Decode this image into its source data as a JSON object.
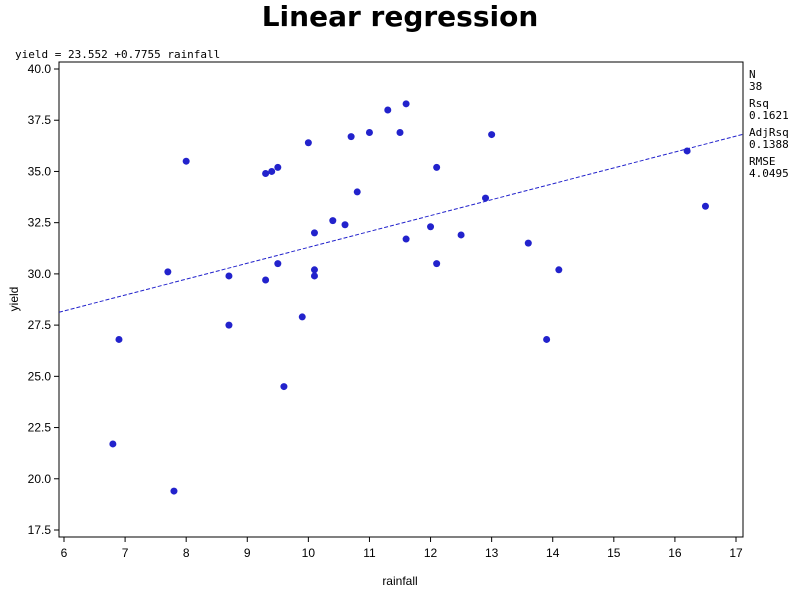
{
  "chart_data": {
    "type": "scatter",
    "title": "Linear regression",
    "equation": "yield = 23.552 +0.7755 rainfall",
    "xlabel": "rainfall",
    "ylabel": "yield",
    "xlim": [
      6,
      17
    ],
    "ylim": [
      17.5,
      40.0
    ],
    "xticks": [
      6,
      7,
      8,
      9,
      10,
      11,
      12,
      13,
      14,
      15,
      16,
      17
    ],
    "yticks": [
      "17.5",
      "20.0",
      "22.5",
      "25.0",
      "27.5",
      "30.0",
      "32.5",
      "35.0",
      "37.5",
      "40.0"
    ],
    "grid": false,
    "point_color": "#2222cc",
    "line_color": "#2222cc",
    "regression": {
      "intercept": 23.552,
      "slope": 0.7755
    },
    "points": [
      {
        "x": 6.8,
        "y": 21.7
      },
      {
        "x": 6.9,
        "y": 26.8
      },
      {
        "x": 7.7,
        "y": 30.1
      },
      {
        "x": 7.8,
        "y": 19.4
      },
      {
        "x": 8.0,
        "y": 35.5
      },
      {
        "x": 8.7,
        "y": 29.9
      },
      {
        "x": 8.7,
        "y": 27.5
      },
      {
        "x": 9.3,
        "y": 34.9
      },
      {
        "x": 9.3,
        "y": 29.7
      },
      {
        "x": 9.4,
        "y": 35.0
      },
      {
        "x": 9.5,
        "y": 35.2
      },
      {
        "x": 9.5,
        "y": 30.5
      },
      {
        "x": 9.6,
        "y": 24.5
      },
      {
        "x": 9.9,
        "y": 27.9
      },
      {
        "x": 10.0,
        "y": 36.4
      },
      {
        "x": 10.1,
        "y": 32.0
      },
      {
        "x": 10.1,
        "y": 30.2
      },
      {
        "x": 10.1,
        "y": 29.9
      },
      {
        "x": 10.4,
        "y": 32.6
      },
      {
        "x": 10.6,
        "y": 32.4
      },
      {
        "x": 10.7,
        "y": 36.7
      },
      {
        "x": 10.8,
        "y": 34.0
      },
      {
        "x": 11.0,
        "y": 36.9
      },
      {
        "x": 11.3,
        "y": 38.0
      },
      {
        "x": 11.5,
        "y": 36.9
      },
      {
        "x": 11.6,
        "y": 38.3
      },
      {
        "x": 11.6,
        "y": 31.7
      },
      {
        "x": 12.0,
        "y": 32.3
      },
      {
        "x": 12.1,
        "y": 35.2
      },
      {
        "x": 12.1,
        "y": 30.5
      },
      {
        "x": 12.5,
        "y": 31.9
      },
      {
        "x": 12.9,
        "y": 33.7
      },
      {
        "x": 13.0,
        "y": 36.8
      },
      {
        "x": 13.6,
        "y": 31.5
      },
      {
        "x": 13.9,
        "y": 26.8
      },
      {
        "x": 14.1,
        "y": 30.2
      },
      {
        "x": 16.2,
        "y": 36.0
      },
      {
        "x": 16.5,
        "y": 33.3
      }
    ],
    "stats": [
      {
        "label": "N",
        "value": "38"
      },
      {
        "label": "Rsq",
        "value": "0.1621"
      },
      {
        "label": "AdjRsq",
        "value": "0.1388"
      },
      {
        "label": "RMSE",
        "value": "4.0495"
      }
    ]
  }
}
